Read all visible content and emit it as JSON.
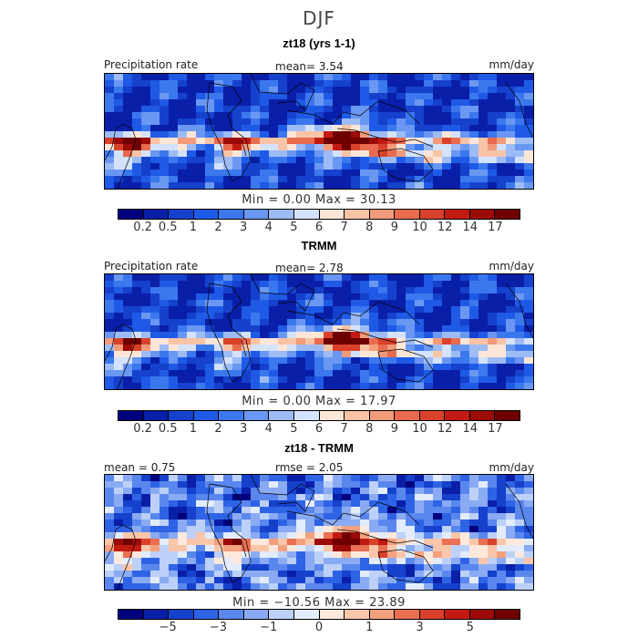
{
  "season": "DJF",
  "panels": [
    {
      "title": "zt18 (yrs 1-1)",
      "left_label": "Precipitation rate",
      "mid_label": "mean=   3.54",
      "right_label": "mm/day",
      "minmax": "Min =   0.00  Max =  30.13",
      "field_style": "model"
    },
    {
      "title": "TRMM",
      "left_label": "Precipitation rate",
      "mid_label": "mean=   2.78",
      "right_label": "mm/day",
      "minmax": "Min =   0.00  Max =  17.97",
      "field_style": "obs"
    },
    {
      "title": "zt18 - TRMM",
      "left_label": "mean =  0.75",
      "mid_label": "rmse =   2.05",
      "right_label": "mm/day",
      "minmax": "Min = −10.56  Max =  23.89",
      "field_style": "diff"
    }
  ],
  "colorbar_abs": {
    "colors": [
      "#00007f",
      "#0a1fa8",
      "#1541cc",
      "#1f5ae6",
      "#3b78ee",
      "#6a97f2",
      "#9dbcf6",
      "#d4e2fb",
      "#fde6d8",
      "#f9c3a6",
      "#f29b7b",
      "#e86a4f",
      "#d9412b",
      "#c21a12",
      "#9c0b08",
      "#6e0000"
    ],
    "ticks": [
      {
        "label": "0.2",
        "index": 1
      },
      {
        "label": "0.5",
        "index": 2
      },
      {
        "label": "1",
        "index": 3
      },
      {
        "label": "2",
        "index": 4
      },
      {
        "label": "3",
        "index": 5
      },
      {
        "label": "4",
        "index": 6
      },
      {
        "label": "5",
        "index": 7
      },
      {
        "label": "6",
        "index": 8
      },
      {
        "label": "7",
        "index": 9
      },
      {
        "label": "8",
        "index": 10
      },
      {
        "label": "9",
        "index": 11
      },
      {
        "label": "10",
        "index": 12
      },
      {
        "label": "12",
        "index": 13
      },
      {
        "label": "14",
        "index": 14
      },
      {
        "label": "17",
        "index": 15
      }
    ]
  },
  "colorbar_diff": {
    "colors": [
      "#00007f",
      "#0a1fa8",
      "#1541cc",
      "#2f63e6",
      "#5a87ee",
      "#8aabf3",
      "#bcd0f8",
      "#e3ecfc",
      "#fde8dc",
      "#f9c6aa",
      "#f3a07f",
      "#e97052",
      "#d9412b",
      "#c21a12",
      "#9c0b08",
      "#6e0000"
    ],
    "ticks": [
      {
        "label": "−5",
        "index": 2
      },
      {
        "label": "−3",
        "index": 4
      },
      {
        "label": "−1",
        "index": 6
      },
      {
        "label": "0",
        "index": 8
      },
      {
        "label": "1",
        "index": 10
      },
      {
        "label": "3",
        "index": 12
      },
      {
        "label": "5",
        "index": 14
      }
    ]
  }
}
